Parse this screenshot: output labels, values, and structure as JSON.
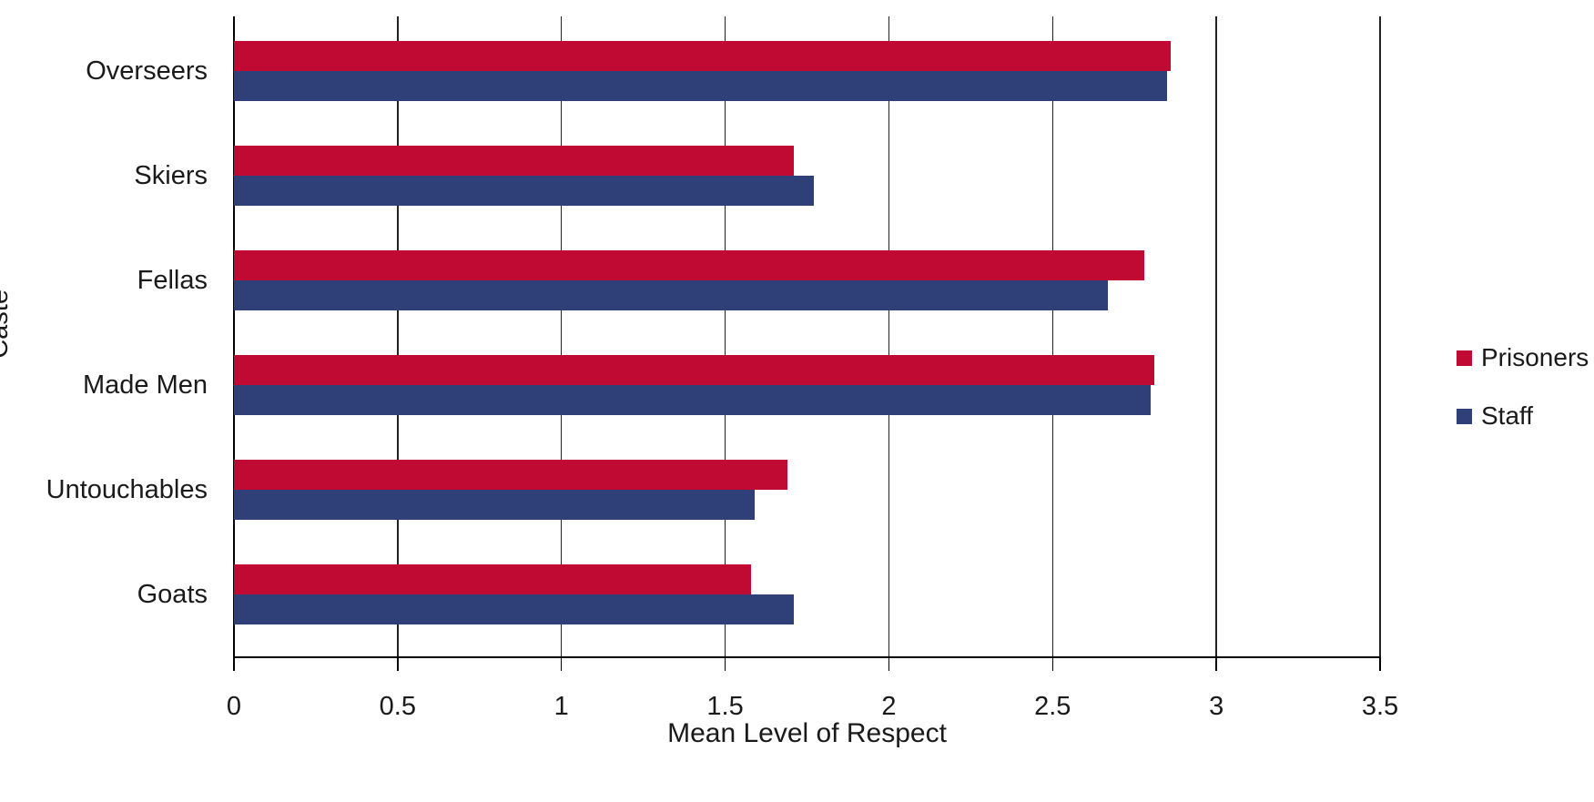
{
  "chart_data": {
    "type": "bar",
    "orientation": "horizontal",
    "xlabel": "Mean Level of Respect",
    "ylabel": "Caste",
    "categories": [
      "Overseers",
      "Skiers",
      "Fellas",
      "Made Men",
      "Untouchables",
      "Goats"
    ],
    "series": [
      {
        "name": "Prisoners",
        "color": "#C10A33",
        "values": [
          2.86,
          1.71,
          2.78,
          2.81,
          1.69,
          1.58
        ]
      },
      {
        "name": "Staff",
        "color": "#2E4077",
        "values": [
          2.85,
          1.77,
          2.67,
          2.8,
          1.59,
          1.71
        ]
      }
    ],
    "xlim": [
      0,
      3.5
    ],
    "xticks": [
      0,
      0.5,
      1,
      1.5,
      2,
      2.5,
      3,
      3.5
    ],
    "xtick_labels": [
      "0",
      "0.5",
      "1",
      "1.5",
      "2",
      "2.5",
      "3",
      "3.5"
    ],
    "grid": "vertical",
    "legend_position": "right",
    "background": "#ffffff"
  }
}
